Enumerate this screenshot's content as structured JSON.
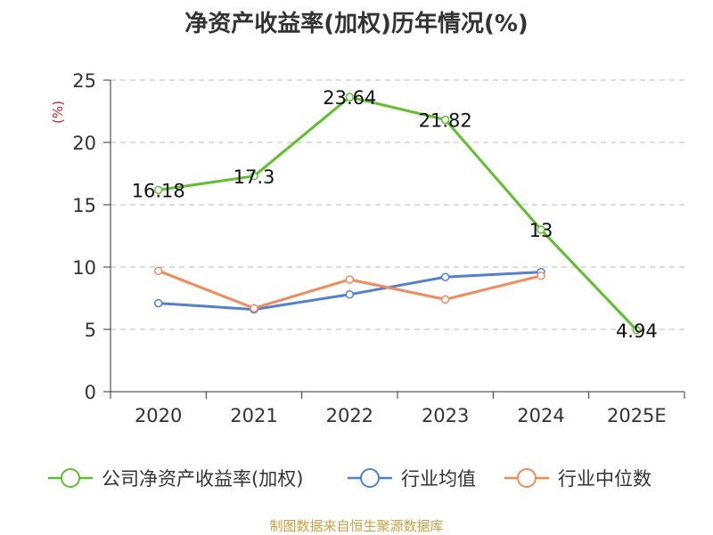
{
  "chart_data": {
    "type": "line",
    "title": "净资产收益率(加权)历年情况(%)",
    "ylabel": "(%)",
    "xlabel": "",
    "ylim": [
      0,
      25
    ],
    "yticks": [
      0,
      5,
      10,
      15,
      20,
      25
    ],
    "grid": true,
    "legend_position": "bottom",
    "categories": [
      "2020",
      "2021",
      "2022",
      "2023",
      "2024",
      "2025E"
    ],
    "series": [
      {
        "name": "公司净资产收益率(加权)",
        "color": "#5ec02a",
        "values": [
          16.18,
          17.3,
          23.64,
          21.82,
          13,
          4.94
        ],
        "labels": [
          "16.18",
          "17.3",
          "23.64",
          "21.82",
          "13",
          "4.94"
        ]
      },
      {
        "name": "行业均值",
        "color": "#4f7fd8",
        "values": [
          7.1,
          6.6,
          7.8,
          9.2,
          9.6,
          null
        ]
      },
      {
        "name": "行业中位数",
        "color": "#f6895a",
        "values": [
          9.7,
          6.7,
          9.0,
          7.4,
          9.3,
          null
        ]
      }
    ],
    "source": "制图数据来自恒生聚源数据库"
  }
}
